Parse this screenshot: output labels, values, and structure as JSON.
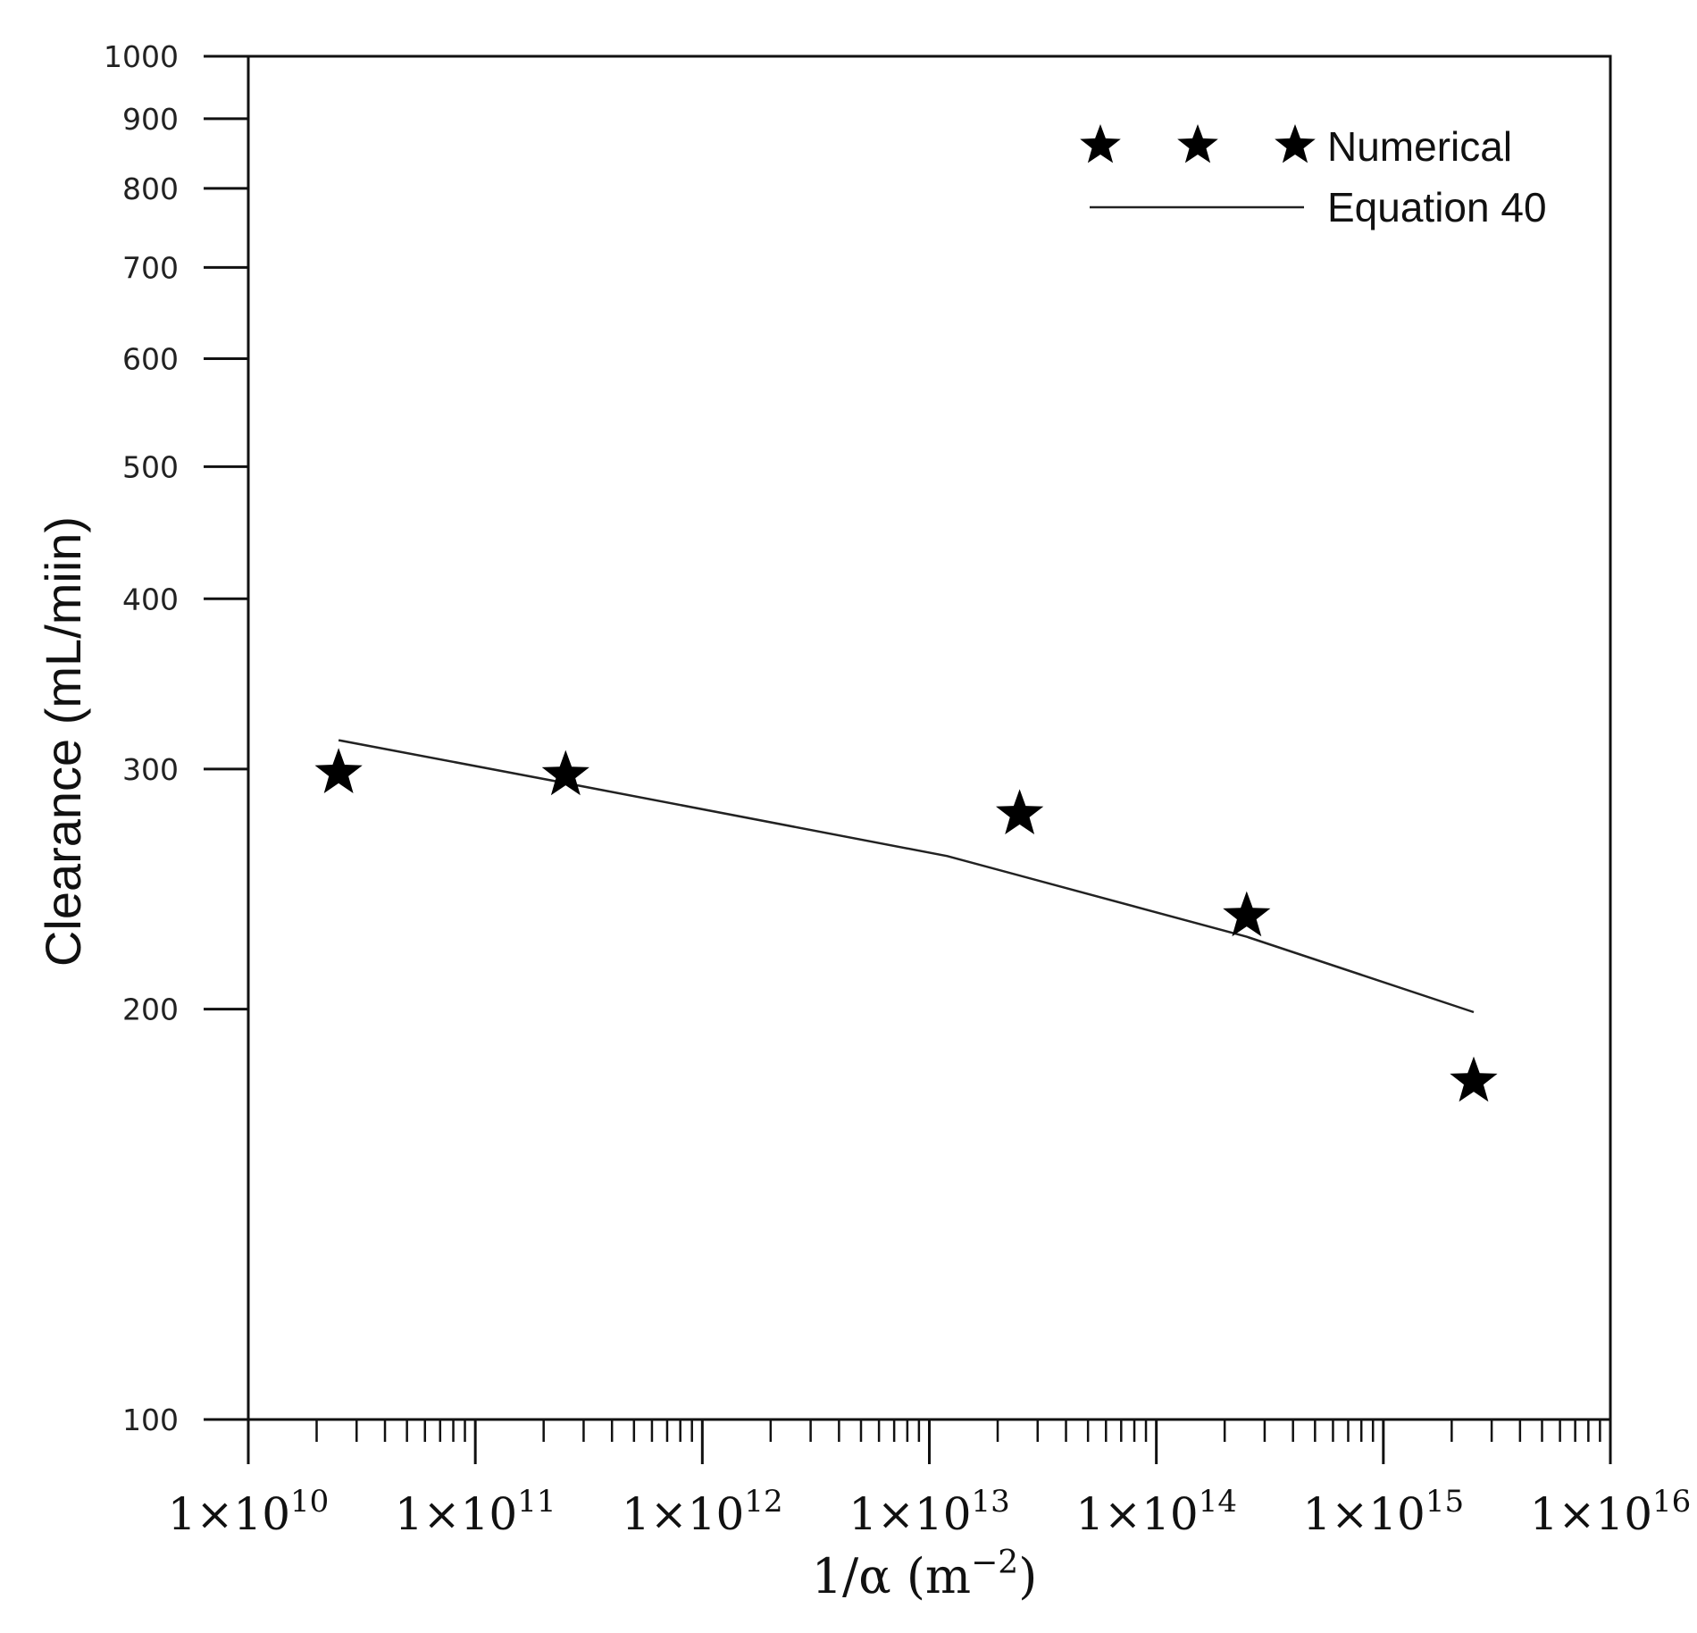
{
  "chart_data": {
    "type": "scatter",
    "x_scale": "log",
    "y_scale": "log",
    "xlim": [
      10000000000,
      10000000000000000
    ],
    "ylim": [
      100,
      1000
    ],
    "xlabel": {
      "base": "1/α (m",
      "exponent": "−2",
      "close": ")"
    },
    "ylabel": "Clearance (mL/miin)",
    "x_ticks": [
      {
        "value": 10000000000.0,
        "mantissa": "1×10",
        "exponent": "10"
      },
      {
        "value": 100000000000.0,
        "mantissa": "1×10",
        "exponent": "11"
      },
      {
        "value": 1000000000000.0,
        "mantissa": "1×10",
        "exponent": "12"
      },
      {
        "value": 10000000000000.0,
        "mantissa": "1×10",
        "exponent": "13"
      },
      {
        "value": 100000000000000.0,
        "mantissa": "1×10",
        "exponent": "14"
      },
      {
        "value": 1000000000000000.0,
        "mantissa": "1×10",
        "exponent": "15"
      },
      {
        "value": 1e+16,
        "mantissa": "1×10",
        "exponent": "16"
      }
    ],
    "y_ticks": [
      {
        "value": 100,
        "label": "100"
      },
      {
        "value": 200,
        "label": "200"
      },
      {
        "value": 300,
        "label": "300"
      },
      {
        "value": 400,
        "label": "400"
      },
      {
        "value": 500,
        "label": "500"
      },
      {
        "value": 600,
        "label": "600"
      },
      {
        "value": 700,
        "label": "700"
      },
      {
        "value": 800,
        "label": "800"
      },
      {
        "value": 900,
        "label": "900"
      },
      {
        "value": 1000,
        "label": "1000"
      }
    ],
    "series": [
      {
        "name": "Numerical",
        "kind": "markers",
        "marker": "star",
        "points": [
          {
            "x": 25000000000.0,
            "y": 298
          },
          {
            "x": 250000000000.0,
            "y": 297
          },
          {
            "x": 25000000000000.0,
            "y": 278
          },
          {
            "x": 250000000000000.0,
            "y": 234
          },
          {
            "x": 2500000000000000.0,
            "y": 177
          }
        ]
      },
      {
        "name": "Equation 40",
        "kind": "line",
        "points": [
          {
            "x": 25000000000.0,
            "y": 315
          },
          {
            "x": 250000000000.0,
            "y": 293
          },
          {
            "x": 12000000000000.0,
            "y": 259
          },
          {
            "x": 250000000000000.0,
            "y": 226
          },
          {
            "x": 2500000000000000.0,
            "y": 199
          }
        ]
      }
    ],
    "legend": {
      "position": "top-right",
      "entries": [
        "Numerical",
        "Equation 40"
      ]
    },
    "grid": false
  }
}
